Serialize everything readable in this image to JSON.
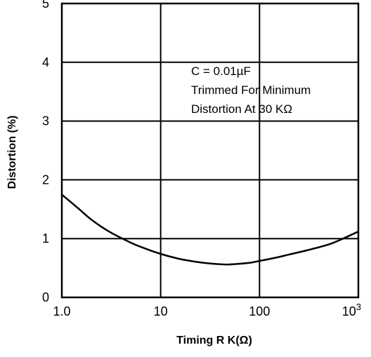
{
  "chart_data": {
    "type": "line",
    "xlabel": "Timing R K(Ω)",
    "ylabel": "Distortion (%)",
    "x_scale": "log",
    "xlim": [
      1,
      1000
    ],
    "ylim": [
      0,
      5
    ],
    "x_ticks": [
      {
        "value": 1,
        "label": "1.0"
      },
      {
        "value": 10,
        "label": "10"
      },
      {
        "value": 100,
        "label": "100"
      },
      {
        "value": 1000,
        "label": "10",
        "sup": "3"
      }
    ],
    "y_ticks": [
      {
        "value": 0,
        "label": "0"
      },
      {
        "value": 1,
        "label": "1"
      },
      {
        "value": 2,
        "label": "2"
      },
      {
        "value": 3,
        "label": "3"
      },
      {
        "value": 4,
        "label": "4"
      },
      {
        "value": 5,
        "label": "5"
      }
    ],
    "grid": true,
    "annotation": [
      "C = 0.01µF",
      "Trimmed For Minimum",
      "Distortion At 30 KΩ"
    ],
    "series": [
      {
        "color": "#000000",
        "x": [
          1,
          1.5,
          2,
          3,
          5,
          7,
          10,
          15,
          20,
          30,
          45,
          60,
          80,
          100,
          150,
          200,
          300,
          500,
          700,
          1000
        ],
        "y": [
          1.75,
          1.5,
          1.32,
          1.12,
          0.93,
          0.83,
          0.74,
          0.66,
          0.62,
          0.58,
          0.56,
          0.57,
          0.59,
          0.62,
          0.68,
          0.73,
          0.8,
          0.9,
          1.0,
          1.12
        ]
      }
    ]
  }
}
